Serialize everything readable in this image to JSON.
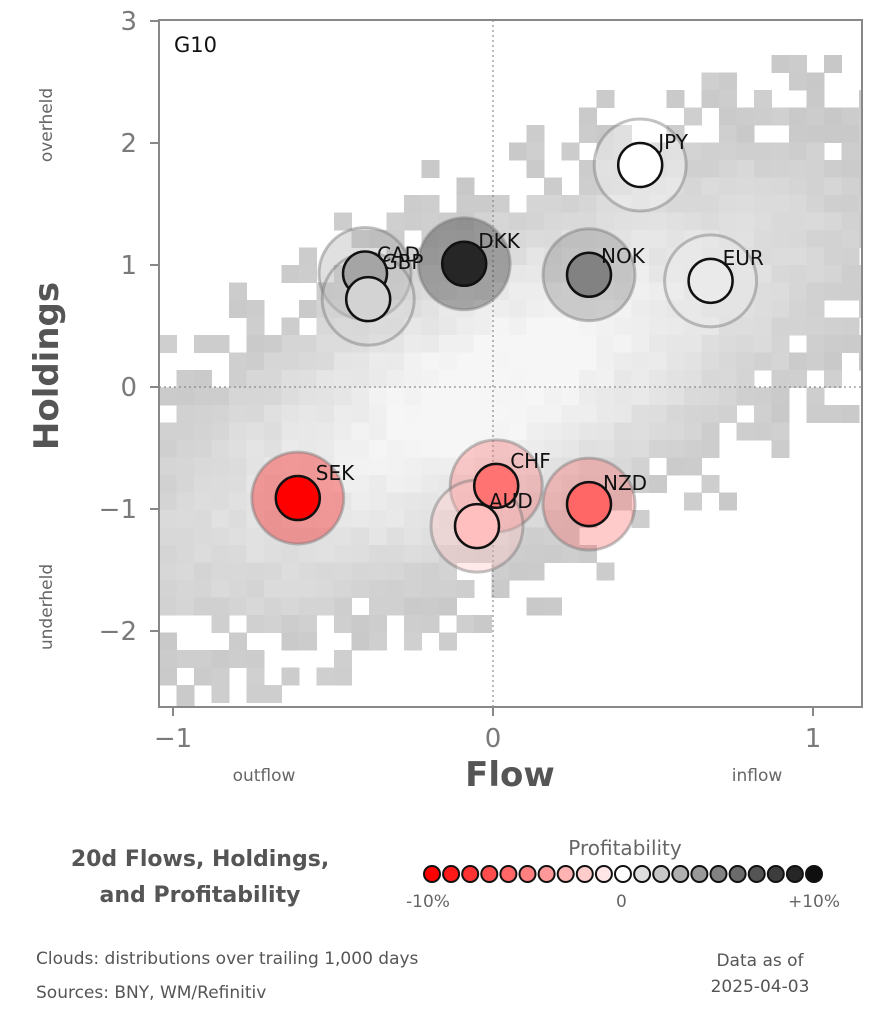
{
  "chart_data": {
    "type": "scatter",
    "panel_label": "G10",
    "xlabel": "Flow",
    "ylabel": "Holdings",
    "xlim": [
      -1.05,
      1.15
    ],
    "ylim": [
      -2.6,
      3.0
    ],
    "xticks": [
      -1,
      0,
      1
    ],
    "yticks": [
      -2,
      -1,
      0,
      1,
      2,
      3
    ],
    "x_notes": [
      "outflow",
      "inflow"
    ],
    "y_notes": [
      "overheld",
      "underheld"
    ],
    "grid": "dotted lines at x=0 and y=0",
    "background": "grey density clouds",
    "points": [
      {
        "label": "JPY",
        "x": 0.46,
        "y": 1.82,
        "profitability": 0.0
      },
      {
        "label": "CAD",
        "x": -0.4,
        "y": 0.93,
        "profitability": 3.5
      },
      {
        "label": "GBP",
        "x": -0.39,
        "y": 0.72,
        "profitability": 1.5
      },
      {
        "label": "DKK",
        "x": -0.09,
        "y": 1.01,
        "profitability": 9.0
      },
      {
        "label": "NOK",
        "x": 0.3,
        "y": 0.92,
        "profitability": 5.0
      },
      {
        "label": "EUR",
        "x": 0.68,
        "y": 0.87,
        "profitability": 0.5
      },
      {
        "label": "SEK",
        "x": -0.61,
        "y": -0.91,
        "profitability": -10.0
      },
      {
        "label": "CHF",
        "x": 0.01,
        "y": -0.81,
        "profitability": -5.5
      },
      {
        "label": "AUD",
        "x": -0.05,
        "y": -1.14,
        "profitability": -2.5
      },
      {
        "label": "NZD",
        "x": 0.3,
        "y": -0.96,
        "profitability": -6.0
      }
    ]
  },
  "footer": {
    "title_line1": "20d Flows, Holdings,",
    "title_line2": "and Profitability",
    "legend_title": "Profitability",
    "legend_min": "-10%",
    "legend_mid": "0",
    "legend_max": "+10%",
    "clouds_note": "Clouds:  distributions over trailing 1,000 days",
    "sources_note": "Sources:  BNY, WM/Refinitiv",
    "asof_line1": "Data as of",
    "asof_line2": "2025-04-03"
  }
}
